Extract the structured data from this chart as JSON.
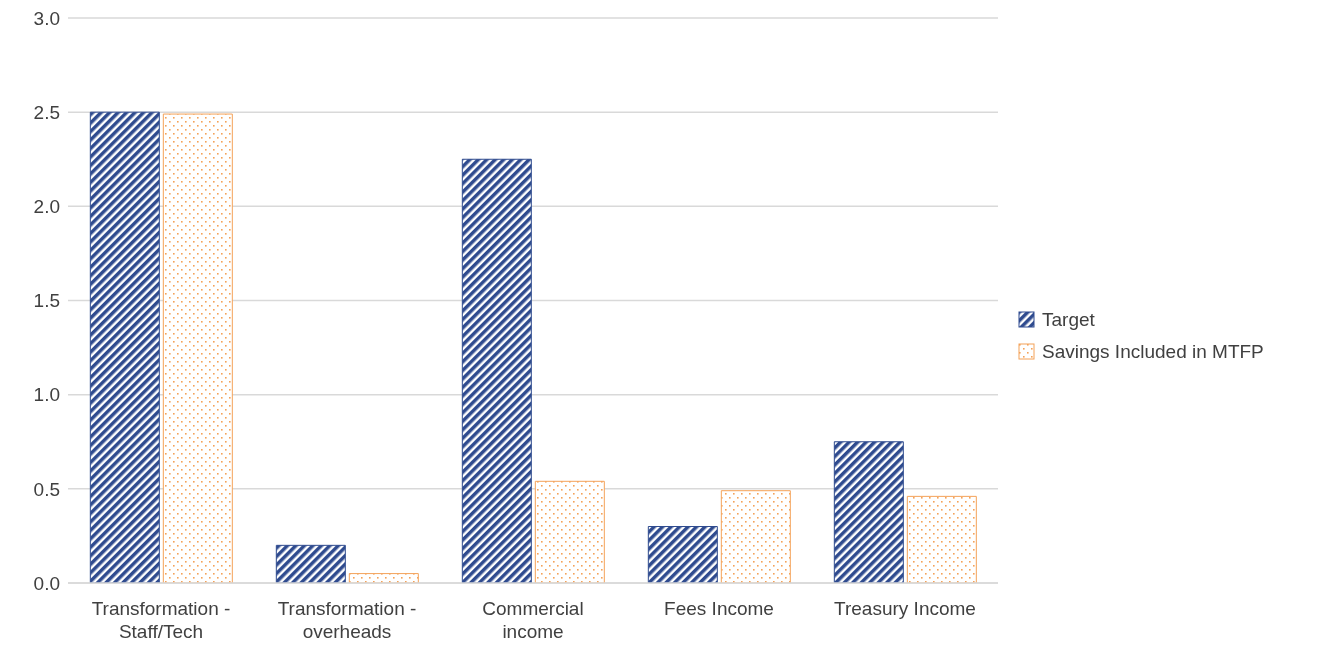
{
  "chart_data": {
    "type": "bar",
    "categories": [
      "Transformation - Staff/Tech",
      "Transformation - overheads",
      "Commercial income",
      "Fees Income",
      "Treasury Income"
    ],
    "series": [
      {
        "name": "Target",
        "color": "#2f4b8f",
        "values": [
          2.5,
          0.2,
          2.25,
          0.3,
          0.75
        ]
      },
      {
        "name": "Savings Included in MTFP",
        "color": "#f4a259",
        "values": [
          2.49,
          0.05,
          0.54,
          0.49,
          0.46
        ]
      }
    ],
    "ylim": [
      0,
      3
    ],
    "yticks": [
      {
        "value": 0,
        "label": "0.0"
      },
      {
        "value": 0.5,
        "label": "0.5"
      },
      {
        "value": 1,
        "label": "1.0"
      },
      {
        "value": 1.5,
        "label": "1.5"
      },
      {
        "value": 2,
        "label": "2.0"
      },
      {
        "value": 2.5,
        "label": "2.5"
      },
      {
        "value": 3,
        "label": "3.0"
      }
    ],
    "grid": "y",
    "legend": "right"
  }
}
